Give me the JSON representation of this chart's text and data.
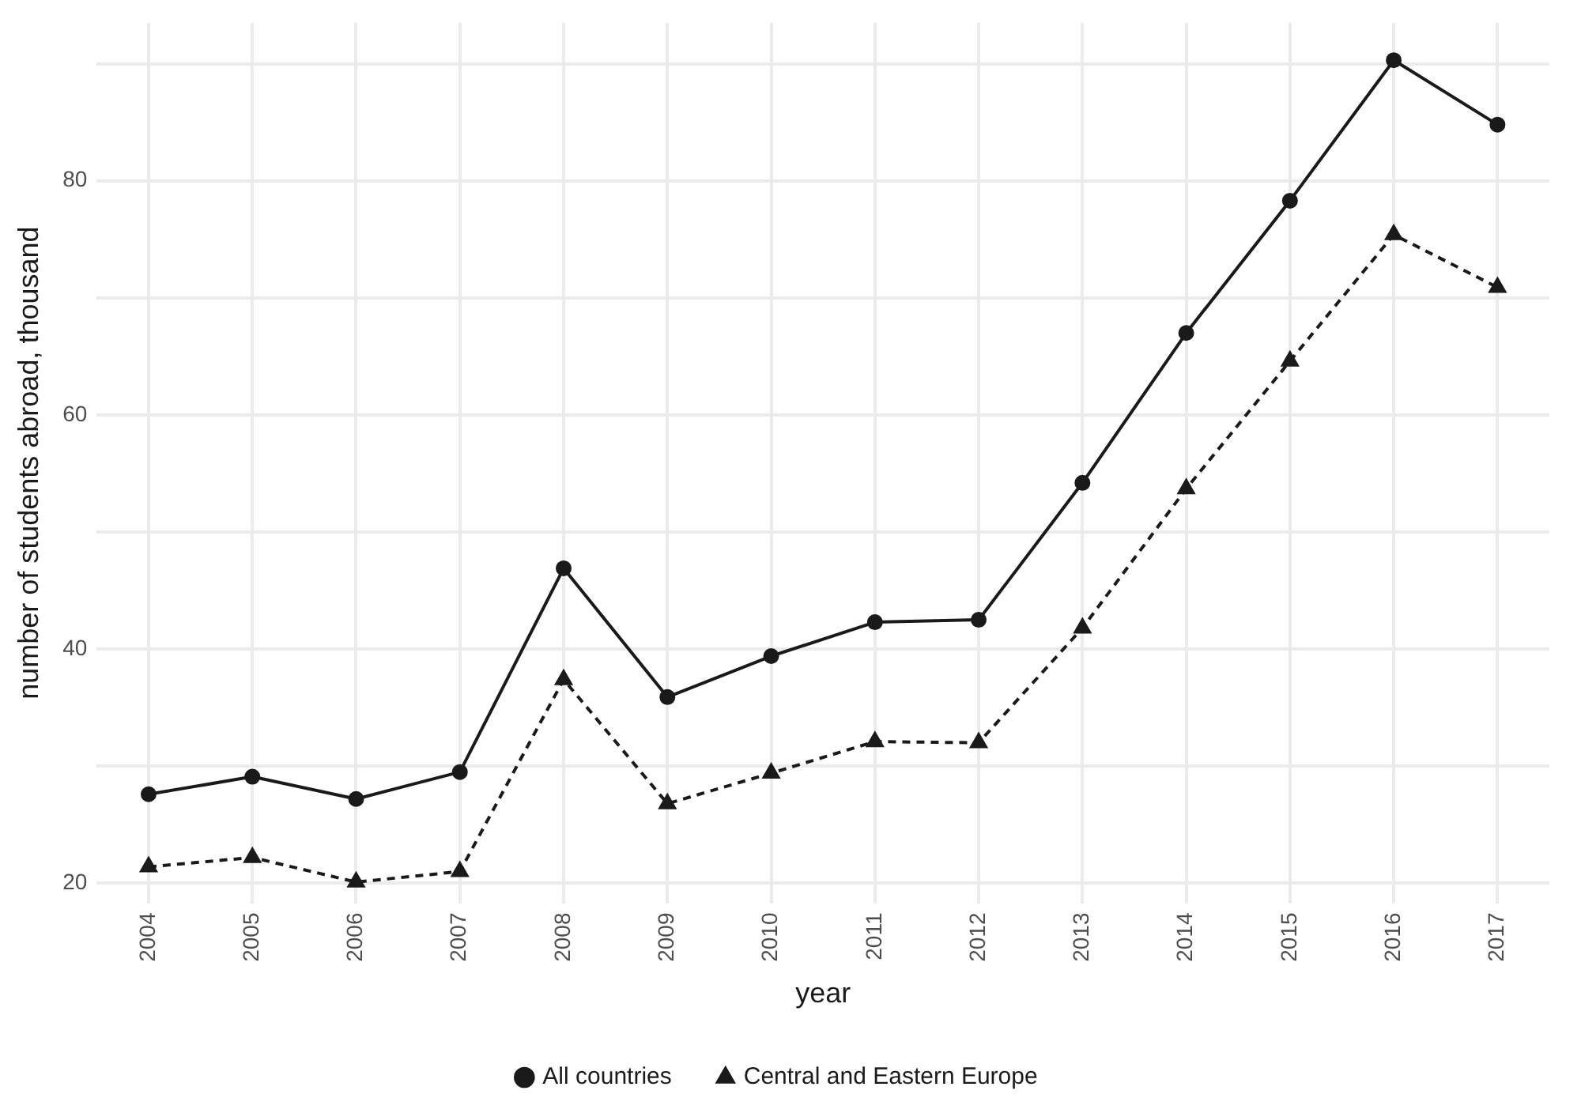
{
  "chart_data": {
    "type": "line",
    "xlabel": "year",
    "ylabel": "number of students abroad, thousand",
    "categories": [
      "2004",
      "2005",
      "2006",
      "2007",
      "2008",
      "2009",
      "2010",
      "2011",
      "2012",
      "2013",
      "2014",
      "2015",
      "2016",
      "2017"
    ],
    "series": [
      {
        "name": "All countries",
        "color": "#1a1a1a",
        "marker": "circle",
        "line_style": "solid",
        "values": [
          27.6,
          29.1,
          27.2,
          29.5,
          46.9,
          35.9,
          39.4,
          42.3,
          42.5,
          54.2,
          67.0,
          78.3,
          90.3,
          84.8
        ]
      },
      {
        "name": "Central and Eastern Europe",
        "color": "#1a1a1a",
        "marker": "triangle",
        "line_style": "dashed",
        "values": [
          21.4,
          22.2,
          20.1,
          21.0,
          37.4,
          26.8,
          29.4,
          32.1,
          32.0,
          41.8,
          53.7,
          64.6,
          75.4,
          70.9
        ]
      }
    ],
    "ylim": [
      18.3,
      93.5
    ],
    "yticks": [
      20,
      {
        "value": 30,
        "label": null
      },
      40,
      {
        "value": 50,
        "label": null
      },
      60,
      {
        "value": 70,
        "label": null
      },
      80,
      {
        "value": 90,
        "label": null
      }
    ],
    "grid": true,
    "legend": "bottom"
  }
}
